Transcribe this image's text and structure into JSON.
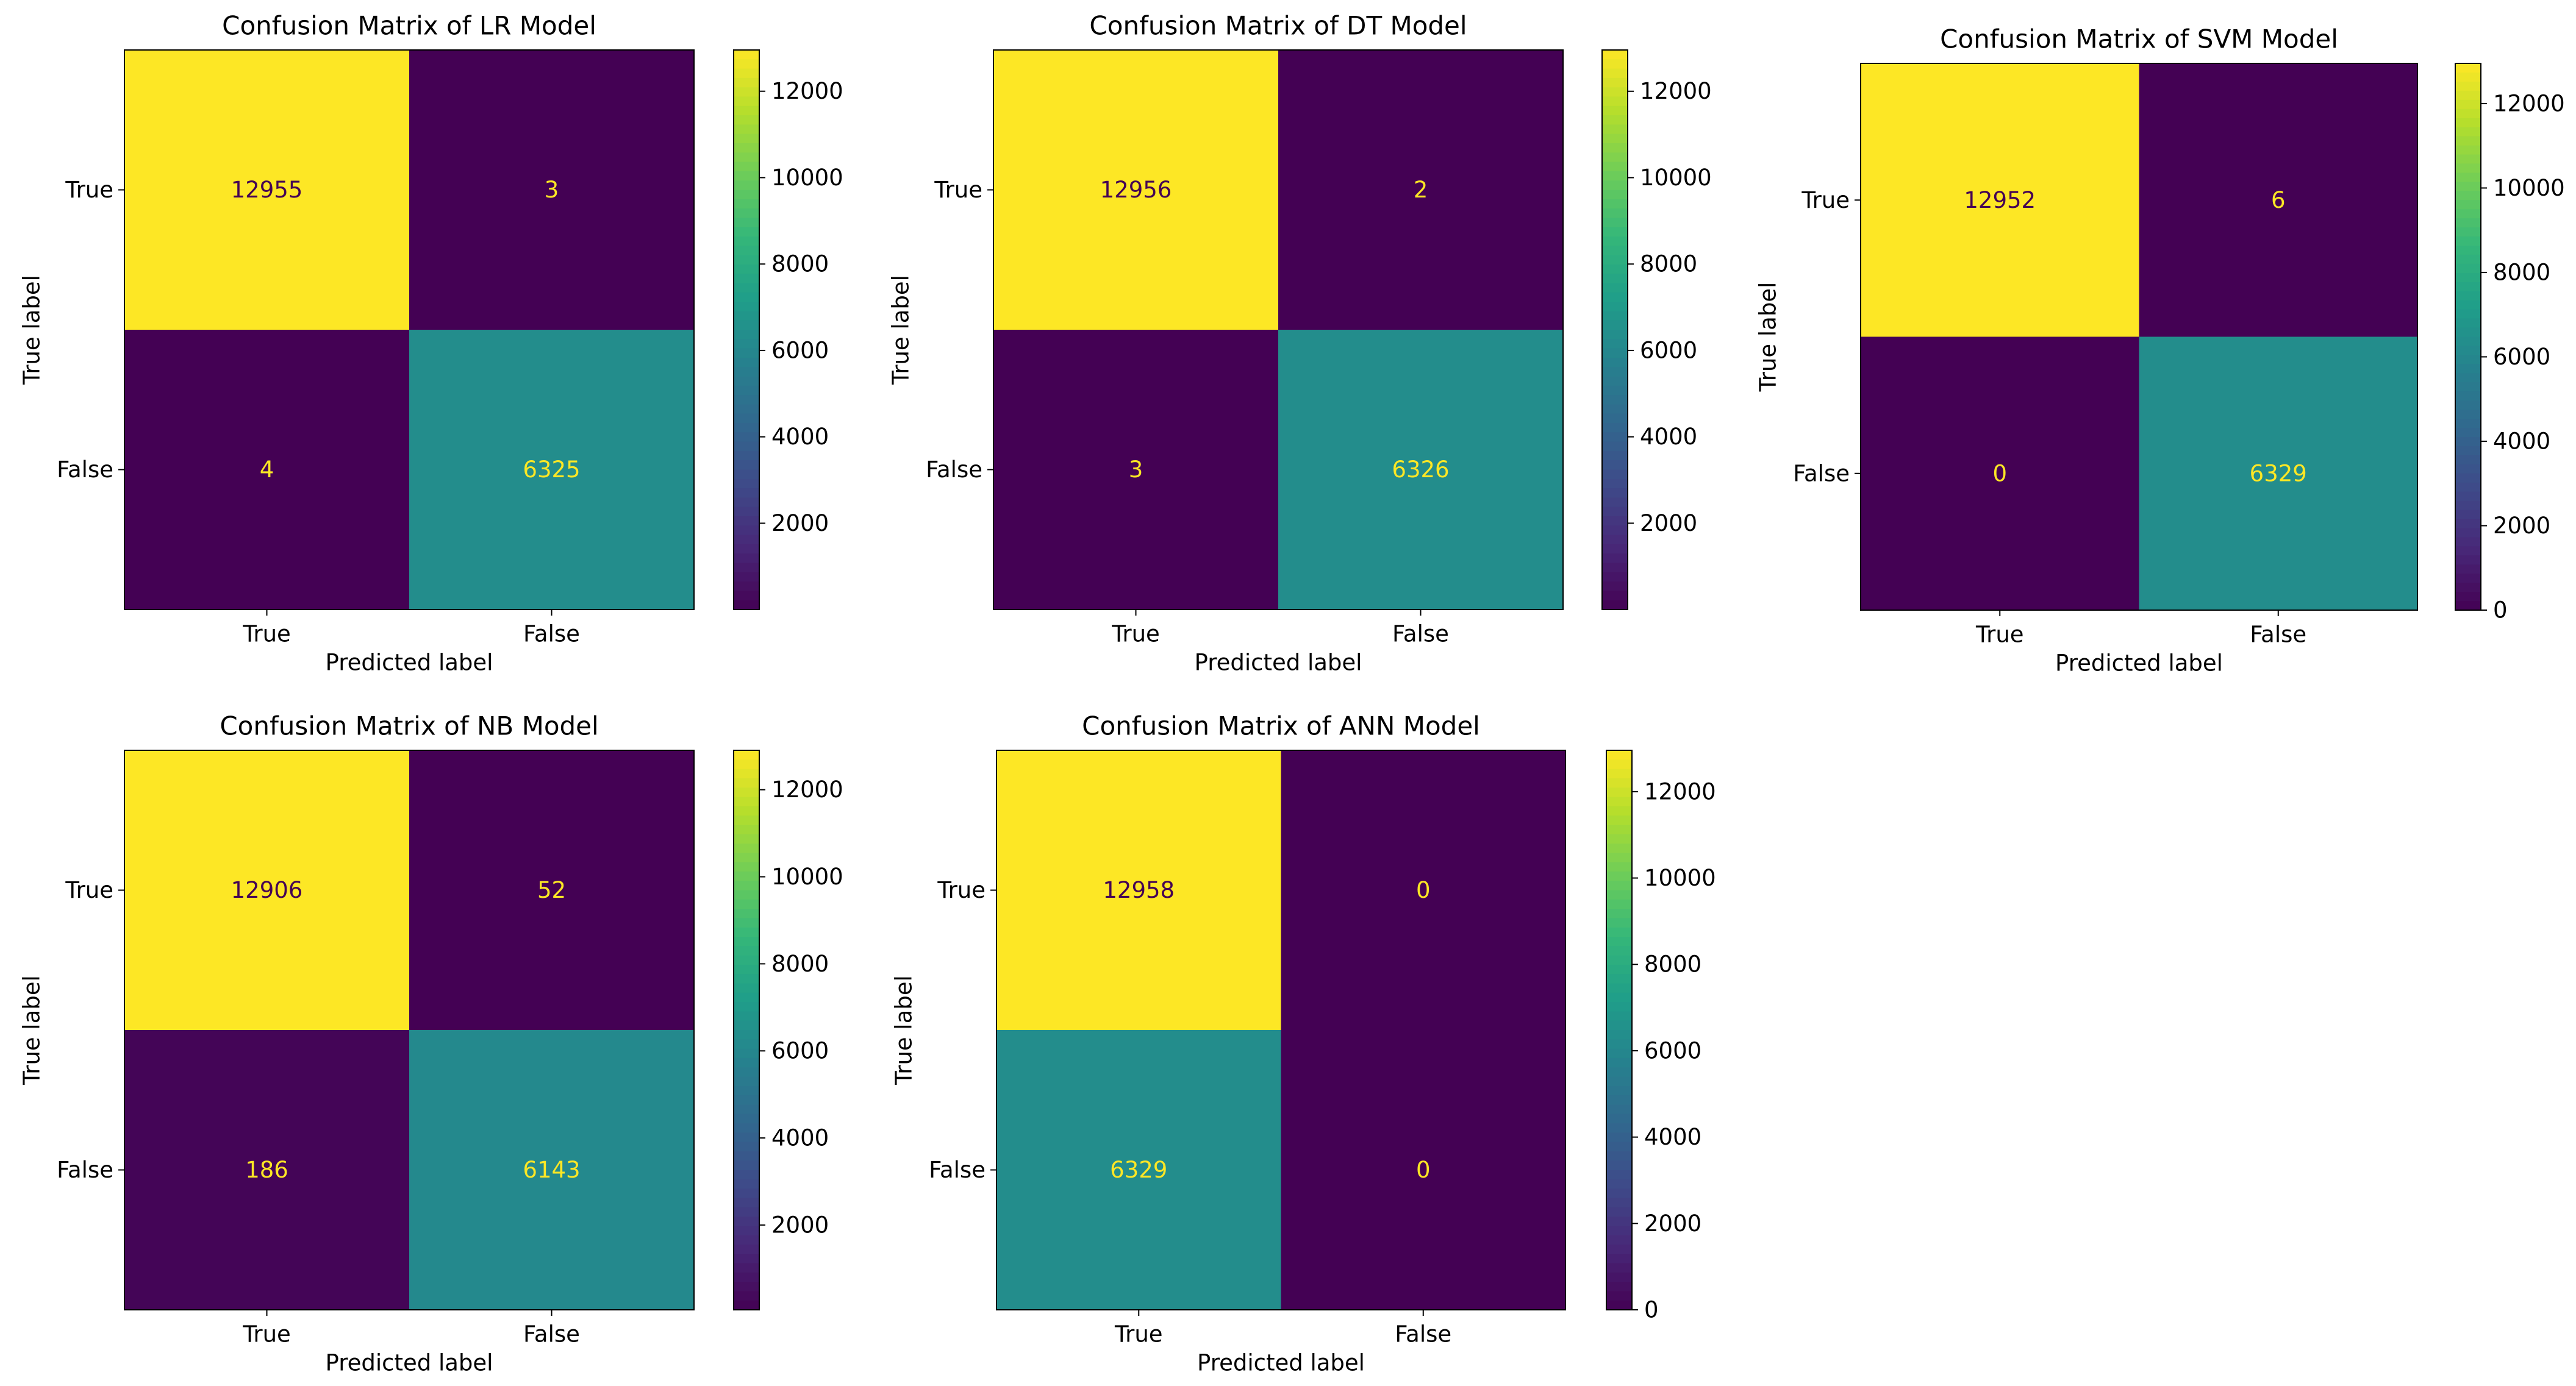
{
  "chart_data": [
    {
      "type": "heatmap",
      "title": "Confusion Matrix of LR Model",
      "xlabel": "Predicted label",
      "ylabel": "True label",
      "x_categories": [
        "True",
        "False"
      ],
      "y_categories": [
        "True",
        "False"
      ],
      "values": [
        [
          12955,
          3
        ],
        [
          4,
          6325
        ]
      ],
      "value_labels": [
        [
          "12955",
          "3"
        ],
        [
          "4",
          "6325"
        ]
      ],
      "colorbar": {
        "range": [
          3,
          12955
        ],
        "ticks": [
          2000,
          4000,
          6000,
          8000,
          10000,
          12000
        ],
        "tick_labels": [
          "2000",
          "4000",
          "6000",
          "8000",
          "10000",
          "12000"
        ]
      }
    },
    {
      "type": "heatmap",
      "title": "Confusion Matrix of DT Model",
      "xlabel": "Predicted label",
      "ylabel": "True label",
      "x_categories": [
        "True",
        "False"
      ],
      "y_categories": [
        "True",
        "False"
      ],
      "values": [
        [
          12956,
          2
        ],
        [
          3,
          6326
        ]
      ],
      "value_labels": [
        [
          "12956",
          "2"
        ],
        [
          "3",
          "6326"
        ]
      ],
      "colorbar": {
        "range": [
          2,
          12956
        ],
        "ticks": [
          2000,
          4000,
          6000,
          8000,
          10000,
          12000
        ],
        "tick_labels": [
          "2000",
          "4000",
          "6000",
          "8000",
          "10000",
          "12000"
        ]
      }
    },
    {
      "type": "heatmap",
      "title": "Confusion Matrix of SVM Model",
      "xlabel": "Predicted label",
      "ylabel": "True label",
      "x_categories": [
        "True",
        "False"
      ],
      "y_categories": [
        "True",
        "False"
      ],
      "values": [
        [
          12952,
          6
        ],
        [
          0,
          6329
        ]
      ],
      "value_labels": [
        [
          "12952",
          "6"
        ],
        [
          "0",
          "6329"
        ]
      ],
      "colorbar": {
        "range": [
          0,
          12952
        ],
        "ticks": [
          0,
          2000,
          4000,
          6000,
          8000,
          10000,
          12000
        ],
        "tick_labels": [
          "0",
          "2000",
          "4000",
          "6000",
          "8000",
          "10000",
          "12000"
        ]
      }
    },
    {
      "type": "heatmap",
      "title": "Confusion Matrix of NB Model",
      "xlabel": "Predicted label",
      "ylabel": "True label",
      "x_categories": [
        "True",
        "False"
      ],
      "y_categories": [
        "True",
        "False"
      ],
      "values": [
        [
          12906,
          52
        ],
        [
          186,
          6143
        ]
      ],
      "value_labels": [
        [
          "12906",
          "52"
        ],
        [
          "186",
          "6143"
        ]
      ],
      "colorbar": {
        "range": [
          52,
          12906
        ],
        "ticks": [
          2000,
          4000,
          6000,
          8000,
          10000,
          12000
        ],
        "tick_labels": [
          "2000",
          "4000",
          "6000",
          "8000",
          "10000",
          "12000"
        ]
      }
    },
    {
      "type": "heatmap",
      "title": "Confusion Matrix of ANN Model",
      "xlabel": "Predicted label",
      "ylabel": "True label",
      "x_categories": [
        "True",
        "False"
      ],
      "y_categories": [
        "True",
        "False"
      ],
      "values": [
        [
          12958,
          0
        ],
        [
          6329,
          0
        ]
      ],
      "value_labels": [
        [
          "12958",
          "0"
        ],
        [
          "6329",
          "0"
        ]
      ],
      "colorbar": {
        "range": [
          0,
          12958
        ],
        "ticks": [
          0,
          2000,
          4000,
          6000,
          8000,
          10000,
          12000
        ],
        "tick_labels": [
          "0",
          "2000",
          "4000",
          "6000",
          "8000",
          "10000",
          "12000"
        ]
      }
    }
  ],
  "colors": {
    "low": "#440154",
    "mid": "#21918c",
    "high": "#fde725",
    "text_dark": "#440154",
    "text_light": "#fde725",
    "ink": "#000000"
  }
}
